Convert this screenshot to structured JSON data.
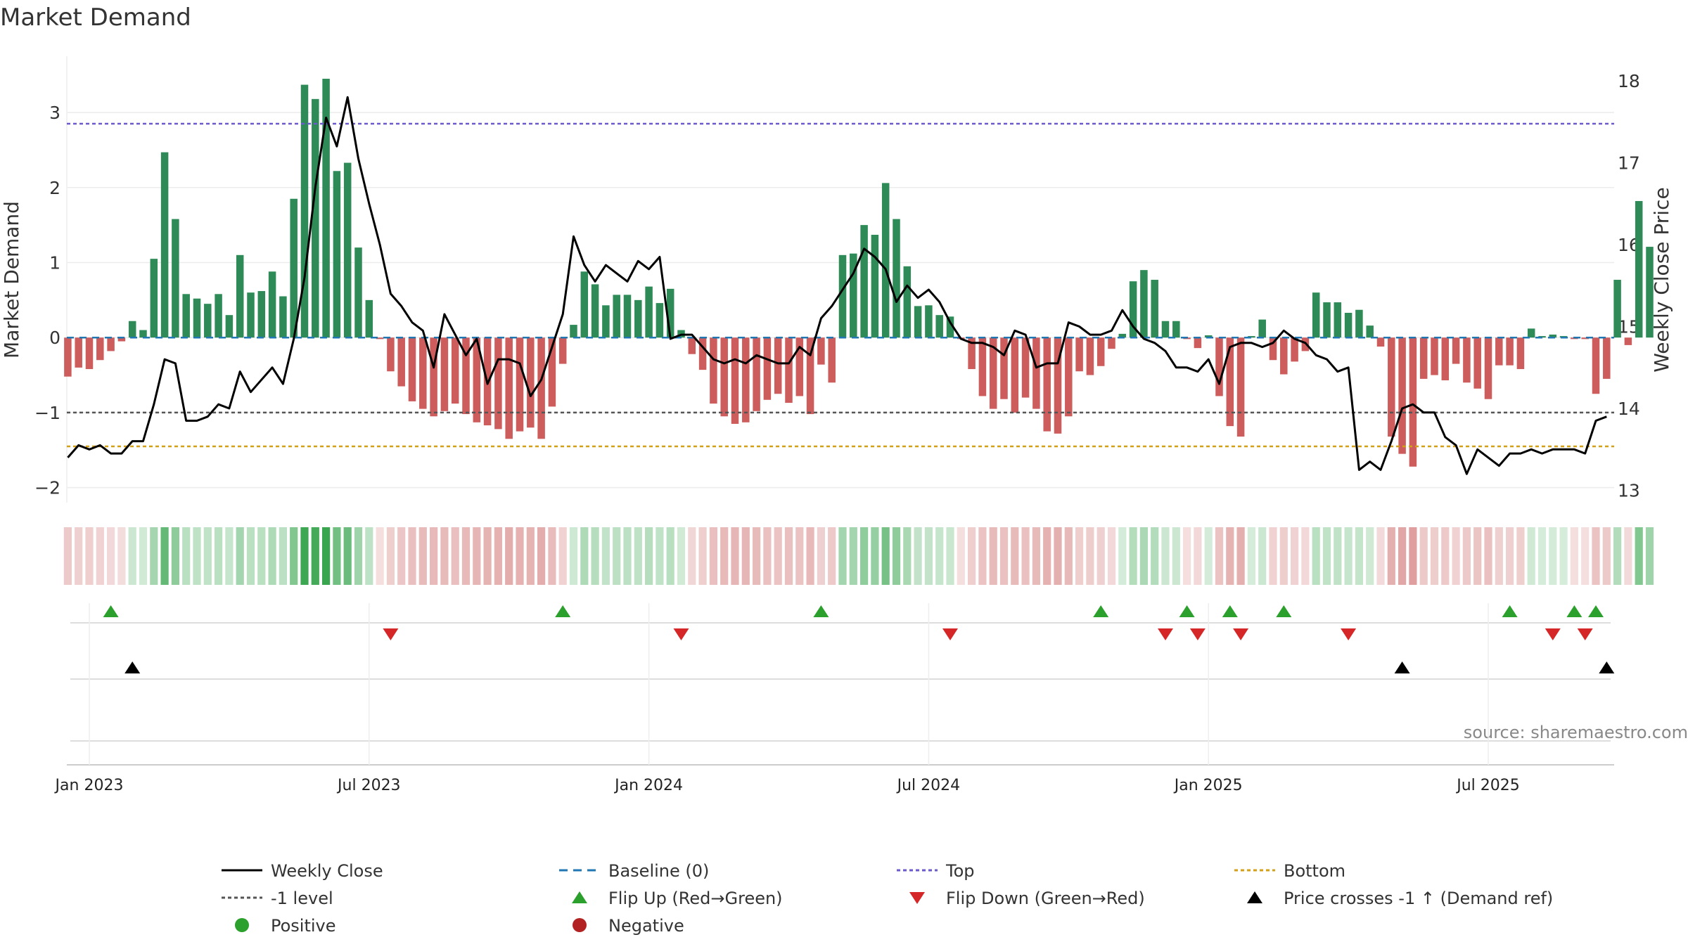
{
  "chart_data": {
    "type": "bar",
    "title": "Market Demand",
    "ylabel": "Market Demand",
    "y2label": "Weekly Close Price",
    "ylim": [
      -2.2,
      3.75
    ],
    "y2lim": [
      12.85,
      18.3
    ],
    "yticks": [
      -2,
      -1,
      0,
      1,
      2,
      3
    ],
    "y2ticks": [
      13,
      14,
      15,
      16,
      17,
      18
    ],
    "x_ticks": [
      "Jan 2023",
      "Jul 2023",
      "Jan 2024",
      "Jul 2024",
      "Jan 2025",
      "Jul 2025"
    ],
    "x_tick_weeks": [
      0,
      26,
      52,
      78,
      104,
      130
    ],
    "first_week": -2,
    "top_level": 2.85,
    "bottom_level": -1.45,
    "minus1_level": -1,
    "demand": [
      -0.52,
      -0.4,
      -0.42,
      -0.3,
      -0.18,
      -0.05,
      0.22,
      0.1,
      1.05,
      2.47,
      1.58,
      0.58,
      0.52,
      0.45,
      0.58,
      0.3,
      1.1,
      0.6,
      0.62,
      0.88,
      0.55,
      1.85,
      3.37,
      3.18,
      3.45,
      2.22,
      2.33,
      1.2,
      0.5,
      -0.02,
      -0.45,
      -0.65,
      -0.85,
      -0.95,
      -1.05,
      -0.98,
      -0.88,
      -1.02,
      -1.13,
      -1.17,
      -1.22,
      -1.35,
      -1.25,
      -1.2,
      -1.35,
      -0.92,
      -0.35,
      0.17,
      0.88,
      0.71,
      0.43,
      0.57,
      0.57,
      0.5,
      0.68,
      0.46,
      0.65,
      0.1,
      -0.22,
      -0.43,
      -0.88,
      -1.05,
      -1.15,
      -1.13,
      -0.98,
      -0.83,
      -0.75,
      -0.87,
      -0.78,
      -1.02,
      -0.36,
      -0.6,
      1.1,
      1.12,
      1.5,
      1.37,
      2.06,
      1.58,
      0.95,
      0.42,
      0.43,
      0.3,
      0.28,
      -0.02,
      -0.42,
      -0.78,
      -0.95,
      -0.82,
      -1.0,
      -0.8,
      -0.95,
      -1.25,
      -1.28,
      -1.05,
      -0.45,
      -0.5,
      -0.38,
      -0.15,
      0.05,
      0.75,
      0.9,
      0.77,
      0.22,
      0.22,
      -0.02,
      -0.14,
      0.03,
      -0.78,
      -1.18,
      -1.32,
      0.02,
      0.24,
      -0.3,
      -0.49,
      -0.32,
      -0.18,
      0.6,
      0.47,
      0.47,
      0.33,
      0.37,
      0.16,
      -0.12,
      -1.32,
      -1.55,
      -1.72,
      -0.55,
      -0.5,
      -0.57,
      -0.35,
      -0.6,
      -0.68,
      -0.82,
      -0.37,
      -0.37,
      -0.42,
      0.12,
      0.02,
      0.04,
      0.02,
      -0.02,
      -0.02,
      -0.75,
      -0.55,
      0.77,
      -0.1,
      1.82,
      1.21
    ],
    "price": [
      13.4,
      13.55,
      13.5,
      13.55,
      13.45,
      13.45,
      13.6,
      13.6,
      14.05,
      14.6,
      14.55,
      13.85,
      13.85,
      13.9,
      14.05,
      14.0,
      14.45,
      14.2,
      14.35,
      14.5,
      14.3,
      14.85,
      15.6,
      16.7,
      17.55,
      17.2,
      17.8,
      17.05,
      16.5,
      16.0,
      15.4,
      15.25,
      15.05,
      14.95,
      14.5,
      15.15,
      14.9,
      14.65,
      14.85,
      14.3,
      14.6,
      14.6,
      14.55,
      14.15,
      14.35,
      14.75,
      15.15,
      16.1,
      15.75,
      15.55,
      15.75,
      15.65,
      15.55,
      15.8,
      15.7,
      15.85,
      14.85,
      14.9,
      14.9,
      14.75,
      14.6,
      14.55,
      14.6,
      14.55,
      14.65,
      14.6,
      14.55,
      14.55,
      14.75,
      14.65,
      15.1,
      15.25,
      15.45,
      15.65,
      15.95,
      15.85,
      15.7,
      15.3,
      15.5,
      15.35,
      15.45,
      15.3,
      15.05,
      14.85,
      14.8,
      14.8,
      14.75,
      14.65,
      14.95,
      14.9,
      14.5,
      14.55,
      14.55,
      15.05,
      15.0,
      14.9,
      14.9,
      14.95,
      15.2,
      15.0,
      14.85,
      14.8,
      14.7,
      14.5,
      14.5,
      14.45,
      14.6,
      14.3,
      14.75,
      14.8,
      14.8,
      14.75,
      14.8,
      14.95,
      14.85,
      14.8,
      14.65,
      14.6,
      14.45,
      14.5,
      13.25,
      13.35,
      13.25,
      13.6,
      14.0,
      14.05,
      13.95,
      13.95,
      13.65,
      13.55,
      13.2,
      13.5,
      13.4,
      13.3,
      13.45,
      13.45,
      13.5,
      13.45,
      13.5,
      13.5,
      13.5,
      13.45,
      13.85,
      13.9
    ],
    "flip_up_weeks": [
      2,
      44,
      68,
      94,
      102,
      106,
      111,
      132,
      138,
      140
    ],
    "flip_down_weeks": [
      28,
      55,
      80,
      100,
      103,
      107,
      117,
      136,
      139
    ],
    "price_cross_weeks": [
      4,
      122,
      141
    ],
    "legend": [
      {
        "label": "Weekly Close",
        "kind": "line",
        "color": "#000000"
      },
      {
        "label": "Baseline (0)",
        "kind": "dash",
        "color": "#1f77b4"
      },
      {
        "label": "Top",
        "kind": "dot",
        "color": "#6a5acd"
      },
      {
        "label": "Bottom",
        "kind": "dot",
        "color": "#d4a017"
      },
      {
        "label": "-1 level",
        "kind": "dot",
        "color": "#555555"
      },
      {
        "label": "Flip Up (Red→Green)",
        "kind": "tri-up",
        "color": "#2ca02c"
      },
      {
        "label": "Flip Down (Green→Red)",
        "kind": "tri-down",
        "color": "#d62728"
      },
      {
        "label": "Price crosses -1 ↑ (Demand ref)",
        "kind": "tri-up",
        "color": "#000000"
      },
      {
        "label": "Positive",
        "kind": "circle",
        "color": "#2ca02c"
      },
      {
        "label": "Negative",
        "kind": "circle",
        "color": "#b22222"
      }
    ],
    "source": "source: sharemaestro.com",
    "colors": {
      "positive_bar": "#2e8b57",
      "negative_bar": "#cd5c5c",
      "price_line": "#000000",
      "baseline": "#1f77b4",
      "top": "#6a5acd",
      "bottom": "#d4a017",
      "minus1": "#555555"
    }
  }
}
